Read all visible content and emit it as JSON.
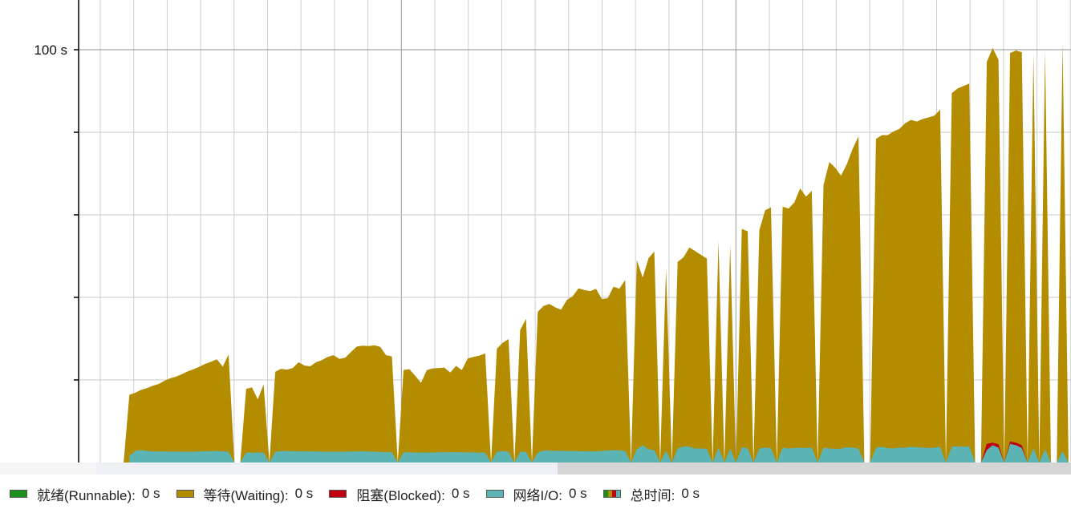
{
  "chart_data": {
    "type": "area",
    "stacked": true,
    "ylim": [
      0,
      100
    ],
    "y_ticks": [
      {
        "value": 100,
        "label": "100 s"
      },
      {
        "value": 80,
        "label": ""
      },
      {
        "value": 60,
        "label": ""
      },
      {
        "value": 40,
        "label": ""
      },
      {
        "value": 20,
        "label": ""
      }
    ],
    "grid": true,
    "legend_position": "bottom",
    "series": [
      {
        "name": "就绪(Runnable)",
        "color": "#1a8f1a"
      },
      {
        "name": "等待(Waiting)",
        "color": "#b38c00"
      },
      {
        "name": "阻塞(Blocked)",
        "color": "#c00010"
      },
      {
        "name": "网络I/O",
        "color": "#5cb3b3"
      }
    ],
    "totals": [
      [
        0,
        0
      ],
      [
        1,
        0
      ],
      [
        2,
        0
      ],
      [
        3,
        0
      ],
      [
        4,
        0
      ],
      [
        5,
        16.4
      ],
      [
        6,
        16.9
      ],
      [
        7,
        17.6
      ],
      [
        8,
        18.0
      ],
      [
        9,
        18.6
      ],
      [
        10,
        19.0
      ],
      [
        11,
        19.8
      ],
      [
        12,
        20.4
      ],
      [
        13,
        20.8
      ],
      [
        14,
        21.4
      ],
      [
        15,
        22.1
      ],
      [
        16,
        22.6
      ],
      [
        17,
        23.2
      ],
      [
        18,
        23.9
      ],
      [
        19,
        24.4
      ],
      [
        20,
        25.0
      ],
      [
        21,
        23.2
      ],
      [
        22,
        26.2
      ],
      [
        23,
        0
      ],
      [
        24,
        0
      ],
      [
        25,
        17.8
      ],
      [
        26,
        18.2
      ],
      [
        27,
        15.3
      ],
      [
        28,
        18.9
      ],
      [
        29,
        0
      ],
      [
        30,
        22.0
      ],
      [
        31,
        22.7
      ],
      [
        32,
        22.5
      ],
      [
        33,
        22.9
      ],
      [
        34,
        24.3
      ],
      [
        35,
        23.5
      ],
      [
        36,
        23.3
      ],
      [
        37,
        24.3
      ],
      [
        38,
        24.8
      ],
      [
        39,
        25.6
      ],
      [
        40,
        26.0
      ],
      [
        41,
        25.1
      ],
      [
        42,
        25.4
      ],
      [
        43,
        26.8
      ],
      [
        44,
        28.1
      ],
      [
        45,
        28.3
      ],
      [
        46,
        28.2
      ],
      [
        47,
        28.4
      ],
      [
        48,
        28.0
      ],
      [
        49,
        26.0
      ],
      [
        50,
        25.7
      ],
      [
        51,
        0
      ],
      [
        52,
        22.4
      ],
      [
        53,
        22.6
      ],
      [
        54,
        21.0
      ],
      [
        55,
        19.3
      ],
      [
        56,
        22.4
      ],
      [
        57,
        22.8
      ],
      [
        58,
        22.9
      ],
      [
        59,
        23.0
      ],
      [
        60,
        21.8
      ],
      [
        61,
        23.4
      ],
      [
        62,
        22.4
      ],
      [
        63,
        25.2
      ],
      [
        64,
        25.6
      ],
      [
        65,
        25.9
      ],
      [
        66,
        26.4
      ],
      [
        67,
        0
      ],
      [
        68,
        27.6
      ],
      [
        69,
        29.0
      ],
      [
        70,
        29.9
      ],
      [
        71,
        0
      ],
      [
        72,
        32.1
      ],
      [
        73,
        34.8
      ],
      [
        74,
        0
      ],
      [
        75,
        36.5
      ],
      [
        76,
        37.9
      ],
      [
        77,
        38.4
      ],
      [
        78,
        37.6
      ],
      [
        79,
        37.0
      ],
      [
        80,
        39.4
      ],
      [
        81,
        40.3
      ],
      [
        82,
        42.2
      ],
      [
        83,
        41.8
      ],
      [
        84,
        41.5
      ],
      [
        85,
        42.1
      ],
      [
        86,
        39.6
      ],
      [
        87,
        39.8
      ],
      [
        88,
        42.6
      ],
      [
        89,
        42.1
      ],
      [
        90,
        44.2
      ],
      [
        91,
        0
      ],
      [
        92,
        49.0
      ],
      [
        93,
        44.8
      ],
      [
        94,
        49.5
      ],
      [
        95,
        51.1
      ],
      [
        96,
        0
      ],
      [
        97,
        47.0
      ],
      [
        98,
        0
      ],
      [
        99,
        48.6
      ],
      [
        100,
        49.7
      ],
      [
        101,
        52.1
      ],
      [
        102,
        51.2
      ],
      [
        103,
        50.3
      ],
      [
        104,
        49.4
      ],
      [
        105,
        0
      ],
      [
        106,
        53.6
      ],
      [
        107,
        0
      ],
      [
        108,
        52.6
      ],
      [
        109,
        0
      ],
      [
        110,
        56.6
      ],
      [
        111,
        56.0
      ],
      [
        112,
        0
      ],
      [
        113,
        56.3
      ],
      [
        114,
        61.1
      ],
      [
        115,
        61.8
      ],
      [
        116,
        0
      ],
      [
        117,
        62.0
      ],
      [
        118,
        61.5
      ],
      [
        119,
        63.0
      ],
      [
        120,
        66.4
      ],
      [
        121,
        64.4
      ],
      [
        122,
        65.8
      ],
      [
        123,
        0
      ],
      [
        124,
        67.2
      ],
      [
        125,
        72.8
      ],
      [
        126,
        71.4
      ],
      [
        127,
        69.5
      ],
      [
        128,
        72.3
      ],
      [
        129,
        76.0
      ],
      [
        130,
        79.0
      ],
      [
        131,
        0
      ],
      [
        132,
        0
      ],
      [
        133,
        78.4
      ],
      [
        134,
        79.3
      ],
      [
        135,
        79.3
      ],
      [
        136,
        80.2
      ],
      [
        137,
        80.8
      ],
      [
        138,
        82.2
      ],
      [
        139,
        83.0
      ],
      [
        140,
        82.6
      ],
      [
        141,
        83.2
      ],
      [
        142,
        83.6
      ],
      [
        143,
        84.0
      ],
      [
        144,
        85.5
      ],
      [
        145,
        0
      ],
      [
        146,
        89.5
      ],
      [
        147,
        90.6
      ],
      [
        148,
        91.2
      ],
      [
        149,
        91.8
      ],
      [
        150,
        0
      ],
      [
        151,
        0
      ],
      [
        152,
        97.0
      ],
      [
        153,
        100.4
      ],
      [
        154,
        97.6
      ],
      [
        155,
        0
      ],
      [
        156,
        99.2
      ],
      [
        157,
        99.8
      ],
      [
        158,
        99.4
      ],
      [
        159,
        0
      ],
      [
        160,
        99.0
      ],
      [
        161,
        0
      ],
      [
        162,
        99.6
      ],
      [
        163,
        0
      ],
      [
        164,
        0
      ],
      [
        165,
        101.5
      ],
      [
        166,
        2.0
      ]
    ],
    "io": [
      [
        5,
        1.6
      ],
      [
        6,
        2.8
      ],
      [
        7,
        3.0
      ],
      [
        8,
        2.8
      ],
      [
        9,
        2.7
      ],
      [
        10,
        2.7
      ],
      [
        15,
        2.6
      ],
      [
        20,
        2.8
      ],
      [
        22,
        2.6
      ],
      [
        23,
        0
      ],
      [
        24,
        0
      ],
      [
        25,
        2.4
      ],
      [
        28,
        2.4
      ],
      [
        29,
        0
      ],
      [
        30,
        2.6
      ],
      [
        31,
        2.8
      ],
      [
        35,
        2.7
      ],
      [
        40,
        2.6
      ],
      [
        45,
        2.7
      ],
      [
        50,
        2.5
      ],
      [
        51,
        0
      ],
      [
        52,
        2.5
      ],
      [
        55,
        2.4
      ],
      [
        60,
        2.5
      ],
      [
        66,
        2.4
      ],
      [
        67,
        0
      ],
      [
        68,
        2.6
      ],
      [
        69,
        2.8
      ],
      [
        70,
        2.6
      ],
      [
        71,
        0
      ],
      [
        72,
        2.6
      ],
      [
        73,
        2.6
      ],
      [
        74,
        0
      ],
      [
        75,
        2.4
      ],
      [
        76,
        2.9
      ],
      [
        80,
        2.8
      ],
      [
        85,
        2.7
      ],
      [
        88,
        3.0
      ],
      [
        90,
        2.8
      ],
      [
        91,
        0
      ],
      [
        92,
        3.2
      ],
      [
        93,
        4.2
      ],
      [
        94,
        3.2
      ],
      [
        95,
        3.0
      ],
      [
        96,
        0
      ],
      [
        97,
        2.9
      ],
      [
        98,
        0
      ],
      [
        99,
        3.4
      ],
      [
        100,
        3.9
      ],
      [
        101,
        3.8
      ],
      [
        102,
        3.4
      ],
      [
        103,
        3.4
      ],
      [
        104,
        3.3
      ],
      [
        105,
        0
      ],
      [
        106,
        3.6
      ],
      [
        107,
        0
      ],
      [
        108,
        3.4
      ],
      [
        109,
        0
      ],
      [
        110,
        3.7
      ],
      [
        111,
        3.4
      ],
      [
        112,
        0
      ],
      [
        113,
        3.4
      ],
      [
        114,
        3.6
      ],
      [
        115,
        3.5
      ],
      [
        116,
        0
      ],
      [
        117,
        3.6
      ],
      [
        118,
        3.4
      ],
      [
        119,
        3.5
      ],
      [
        120,
        3.6
      ],
      [
        121,
        3.5
      ],
      [
        122,
        3.6
      ],
      [
        123,
        0
      ],
      [
        124,
        3.6
      ],
      [
        125,
        3.4
      ],
      [
        126,
        3.3
      ],
      [
        127,
        3.4
      ],
      [
        128,
        3.7
      ],
      [
        129,
        3.6
      ],
      [
        130,
        3.4
      ],
      [
        131,
        0
      ],
      [
        132,
        0
      ],
      [
        133,
        3.6
      ],
      [
        134,
        3.8
      ],
      [
        135,
        3.5
      ],
      [
        136,
        3.4
      ],
      [
        137,
        3.6
      ],
      [
        138,
        3.6
      ],
      [
        139,
        3.8
      ],
      [
        140,
        3.7
      ],
      [
        141,
        3.6
      ],
      [
        142,
        3.5
      ],
      [
        143,
        3.6
      ],
      [
        144,
        3.8
      ],
      [
        145,
        0
      ],
      [
        146,
        3.8
      ],
      [
        147,
        3.9
      ],
      [
        148,
        3.8
      ],
      [
        149,
        3.9
      ],
      [
        150,
        0
      ],
      [
        151,
        0
      ],
      [
        152,
        3.0
      ],
      [
        153,
        4.2
      ],
      [
        154,
        3.6
      ],
      [
        155,
        0
      ],
      [
        156,
        4.5
      ],
      [
        157,
        4.2
      ],
      [
        158,
        3.5
      ],
      [
        159,
        0
      ],
      [
        160,
        3.5
      ],
      [
        161,
        0
      ],
      [
        162,
        3.2
      ],
      [
        163,
        0
      ],
      [
        164,
        0
      ],
      [
        165,
        2.8
      ],
      [
        166,
        0
      ]
    ],
    "blocked": [
      [
        150,
        0
      ],
      [
        151,
        0
      ],
      [
        152,
        4.5
      ],
      [
        153,
        4.8
      ],
      [
        154,
        4.4
      ],
      [
        155,
        0
      ],
      [
        156,
        5.1
      ],
      [
        157,
        4.8
      ],
      [
        158,
        4.2
      ],
      [
        159,
        0
      ]
    ]
  },
  "legend": {
    "runnable": {
      "label": "就绪(Runnable):",
      "value": "0 s",
      "color": "#1a8f1a"
    },
    "waiting": {
      "label": "等待(Waiting):",
      "value": "0 s",
      "color": "#b38c00"
    },
    "blocked": {
      "label": "阻塞(Blocked):",
      "value": "0 s",
      "color": "#c00010"
    },
    "io": {
      "label": "网络I/O:",
      "value": "0 s",
      "color": "#5cb3b3"
    },
    "total": {
      "label": "总时间:",
      "value": "0 s",
      "colors": [
        "#1a8f1a",
        "#b38c00",
        "#c00010",
        "#5cb3b3"
      ]
    }
  }
}
